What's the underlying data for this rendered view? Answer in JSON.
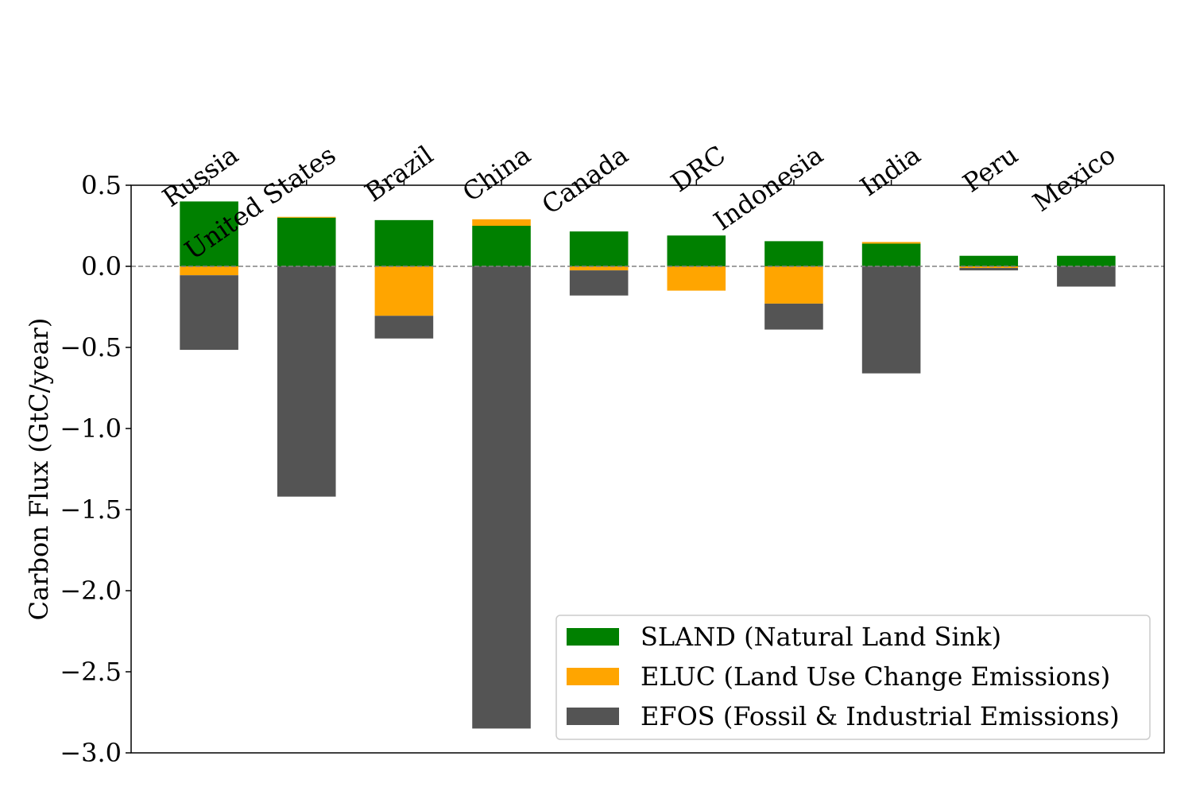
{
  "chart_data": {
    "type": "bar",
    "stacked": true,
    "title": "",
    "xlabel": "",
    "ylabel": "Carbon Flux (GtC/year)",
    "ylim": [
      -3.0,
      0.5
    ],
    "yticks": [
      0.5,
      0.0,
      -0.5,
      -1.0,
      -1.5,
      -2.0,
      -2.5,
      -3.0
    ],
    "ytick_labels": [
      "0.5",
      "0.0",
      "−0.5",
      "−1.0",
      "−1.5",
      "−2.0",
      "−2.5",
      "−3.0"
    ],
    "x_tick_position": "top",
    "x_tick_rotation_deg": 35,
    "reference_line": {
      "y": 0.0,
      "style": "dashed",
      "color": "#808080"
    },
    "grid": false,
    "categories": [
      "Russia",
      "United States",
      "Brazil",
      "China",
      "Canada",
      "DRC",
      "Indonesia",
      "India",
      "Peru",
      "Mexico"
    ],
    "series": [
      {
        "name": "SLAND (Natural Land Sink)",
        "color": "#008000",
        "values": [
          0.4,
          0.3,
          0.285,
          0.25,
          0.215,
          0.19,
          0.155,
          0.14,
          0.065,
          0.065
        ]
      },
      {
        "name": "ELUC (Land Use Change Emissions)",
        "color": "#FFA500",
        "values": [
          -0.055,
          0.005,
          -0.305,
          0.04,
          -0.025,
          -0.15,
          -0.23,
          0.01,
          -0.01,
          0.0
        ]
      },
      {
        "name": "EFOS (Fossil & Industrial Emissions)",
        "color": "#545454",
        "values": [
          -0.46,
          -1.42,
          -0.14,
          -2.85,
          -0.155,
          0.0,
          -0.16,
          -0.66,
          -0.015,
          -0.125
        ]
      }
    ],
    "legend_position": "lower-right"
  }
}
